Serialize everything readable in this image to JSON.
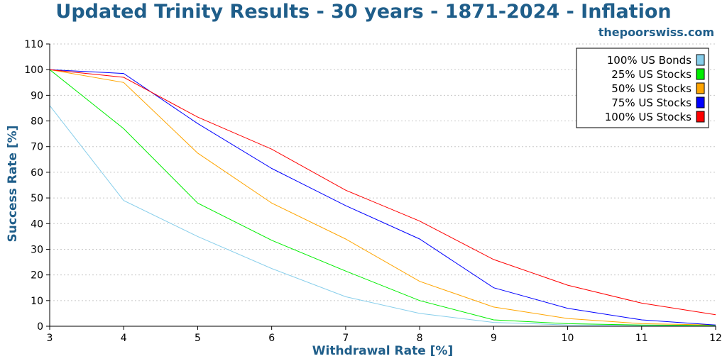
{
  "chart_data": {
    "type": "line",
    "title": "Updated Trinity Results - 30 years - 1871-2024 - Inflation",
    "subtitle": "thepoorswiss.com",
    "xlabel": "Withdrawal Rate [%]",
    "ylabel": "Success Rate [%]",
    "xlim": [
      3,
      12
    ],
    "ylim": [
      0,
      110
    ],
    "x": [
      3,
      4,
      5,
      6,
      7,
      8,
      9,
      10,
      11,
      12
    ],
    "xticks": [
      3,
      4,
      5,
      6,
      7,
      8,
      9,
      10,
      11,
      12
    ],
    "yticks": [
      0,
      10,
      20,
      30,
      40,
      50,
      60,
      70,
      80,
      90,
      100,
      110
    ],
    "grid": true,
    "legend_position": "top-right",
    "series": [
      {
        "name": "100% US Bonds",
        "color": "#87ceeb",
        "values": [
          86,
          49,
          35,
          22.5,
          11.5,
          5,
          1.5,
          0.5,
          0.3,
          0.2
        ]
      },
      {
        "name": "25% US Stocks",
        "color": "#00ee00",
        "values": [
          100,
          77,
          48,
          33.5,
          21.5,
          10,
          2.5,
          1,
          0.5,
          0.3
        ]
      },
      {
        "name": "50% US Stocks",
        "color": "#ffa500",
        "values": [
          100,
          95,
          67.5,
          48,
          34,
          17.5,
          7.5,
          3,
          1,
          0.5
        ]
      },
      {
        "name": "75% US Stocks",
        "color": "#0000ff",
        "values": [
          100,
          98.5,
          79,
          61.5,
          47,
          34,
          15,
          7,
          2.5,
          0.5
        ]
      },
      {
        "name": "100% US Stocks",
        "color": "#ff0000",
        "values": [
          100,
          97,
          81.5,
          69,
          53,
          41,
          26,
          16,
          9,
          4.5
        ]
      }
    ]
  }
}
